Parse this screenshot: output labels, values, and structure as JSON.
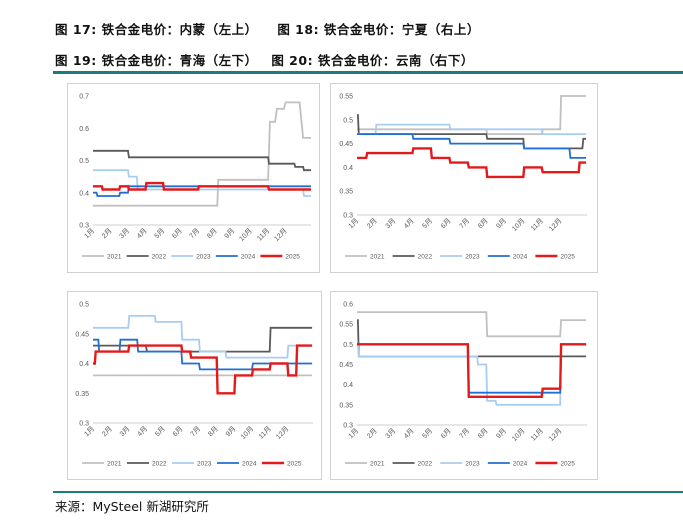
{
  "header": {
    "line1_a": "图 17: 铁合金电价：内蒙（左上）",
    "line1_b": "图 18: 铁合金电价：宁夏（右上）",
    "line2_a": "图 19: 铁合金电价：青海（左下）",
    "line2_b": "图 20: 铁合金电价：云南（右下）"
  },
  "footer": {
    "source": "来源：MySteel 新湖研究所"
  },
  "colors": {
    "2021": "#c0c0c0",
    "2022": "#595959",
    "2023": "#a9cdf0",
    "2024": "#1f6fd4",
    "2025": "#e31a1c",
    "rule": "#1f7a80"
  },
  "chart_data": [
    {
      "type": "line",
      "months": [
        "1月",
        "2月",
        "3月",
        "4月",
        "5月",
        "6月",
        "7月",
        "8月",
        "9月",
        "10月",
        "11月",
        "12月"
      ],
      "ylim": [
        0.3,
        0.7
      ],
      "yticks": [
        "0.3",
        "0.4",
        "0.5",
        "0.6",
        "0.7"
      ],
      "ytick_values": [
        0.3,
        0.4,
        0.5,
        0.6,
        0.7
      ],
      "series": [
        {
          "name": "2021",
          "x": [
            0,
            0.1,
            7.1,
            7.15,
            9.0,
            10.0,
            10.1,
            10.4,
            10.5,
            10.9,
            11.0,
            11.8,
            12.0,
            12.45
          ],
          "y": [
            0.36,
            0.36,
            0.36,
            0.44,
            0.44,
            0.44,
            0.62,
            0.62,
            0.66,
            0.66,
            0.68,
            0.68,
            0.57,
            0.57
          ]
        },
        {
          "name": "2022",
          "x": [
            0,
            2.0,
            2.05,
            10.0,
            10.05,
            11.5,
            11.55,
            12.0,
            12.05,
            12.45
          ],
          "y": [
            0.53,
            0.53,
            0.51,
            0.51,
            0.49,
            0.49,
            0.48,
            0.48,
            0.47,
            0.47
          ]
        },
        {
          "name": "2023",
          "x": [
            0,
            2.0,
            2.05,
            2.5,
            2.55,
            12.0,
            12.05,
            12.45
          ],
          "y": [
            0.47,
            0.47,
            0.45,
            0.45,
            0.41,
            0.41,
            0.39,
            0.39
          ]
        },
        {
          "name": "2024",
          "x": [
            0,
            0.2,
            0.25,
            1.5,
            1.55,
            2.0,
            2.05,
            12.0,
            12.05,
            12.45
          ],
          "y": [
            0.4,
            0.4,
            0.39,
            0.39,
            0.4,
            0.4,
            0.42,
            0.42,
            0.42,
            0.42
          ]
        },
        {
          "name": "2025",
          "x": [
            0,
            0.5,
            0.55,
            1.5,
            1.55,
            2.0,
            2.05,
            3.0,
            3.05,
            4.0,
            4.05,
            6.0,
            6.05,
            8.0,
            8.05,
            10.0,
            10.05,
            11.0,
            11.05,
            12.45
          ],
          "y": [
            0.42,
            0.42,
            0.41,
            0.41,
            0.42,
            0.42,
            0.41,
            0.41,
            0.43,
            0.43,
            0.41,
            0.41,
            0.42,
            0.42,
            0.42,
            0.42,
            0.41,
            0.41,
            0.41,
            0.41
          ]
        }
      ]
    },
    {
      "type": "line",
      "months": [
        "1月",
        "2月",
        "3月",
        "4月",
        "5月",
        "6月",
        "7月",
        "8月",
        "9月",
        "10月",
        "11月",
        "12月"
      ],
      "ylim": [
        0.3,
        0.55
      ],
      "yticks": [
        "0.3",
        "0.35",
        "0.4",
        "0.45",
        "0.5",
        "0.55"
      ],
      "ytick_values": [
        0.3,
        0.35,
        0.4,
        0.45,
        0.5,
        0.55
      ],
      "series": [
        {
          "name": "2021",
          "x": [
            0,
            7.0,
            7.05,
            10.0,
            10.05,
            11.0,
            11.05,
            12.4
          ],
          "y": [
            0.48,
            0.48,
            0.47,
            0.47,
            0.48,
            0.48,
            0.55,
            0.55
          ]
        },
        {
          "name": "2022",
          "x": [
            0,
            0.05,
            0.1,
            7.0,
            7.05,
            9.0,
            9.05,
            12.0,
            12.05,
            12.2,
            12.25,
            12.4
          ],
          "y": [
            0.51,
            0.51,
            0.47,
            0.47,
            0.46,
            0.46,
            0.44,
            0.44,
            0.44,
            0.44,
            0.46,
            0.46
          ]
        },
        {
          "name": "2023",
          "x": [
            0,
            1.0,
            1.05,
            5.0,
            5.05,
            10.0,
            10.05,
            12.0,
            12.05,
            12.4
          ],
          "y": [
            0.47,
            0.47,
            0.49,
            0.49,
            0.48,
            0.48,
            0.47,
            0.47,
            0.47,
            0.47
          ]
        },
        {
          "name": "2024",
          "x": [
            0,
            3.0,
            3.05,
            5.0,
            5.05,
            9.0,
            9.05,
            10.0,
            10.05,
            11.5,
            11.55,
            12.4
          ],
          "y": [
            0.47,
            0.47,
            0.46,
            0.46,
            0.45,
            0.45,
            0.44,
            0.44,
            0.44,
            0.44,
            0.42,
            0.42
          ]
        },
        {
          "name": "2025",
          "x": [
            0,
            0.5,
            0.55,
            2.5,
            2.55,
            3.0,
            3.05,
            4.0,
            4.05,
            5.0,
            5.05,
            6.0,
            6.05,
            7.0,
            7.05,
            9.0,
            9.05,
            10.0,
            10.05,
            11.0,
            11.05,
            12.0,
            12.05,
            12.4
          ],
          "y": [
            0.42,
            0.42,
            0.43,
            0.43,
            0.43,
            0.43,
            0.44,
            0.44,
            0.42,
            0.42,
            0.41,
            0.41,
            0.4,
            0.4,
            0.38,
            0.38,
            0.4,
            0.4,
            0.39,
            0.39,
            0.39,
            0.39,
            0.41,
            0.41
          ]
        }
      ]
    },
    {
      "type": "line",
      "months": [
        "1月",
        "2月",
        "3月",
        "4月",
        "5月",
        "6月",
        "7月",
        "8月",
        "9月",
        "10月",
        "11月",
        "12月"
      ],
      "ylim": [
        0.3,
        0.5
      ],
      "yticks": [
        "0.3",
        "0.35",
        "0.4",
        "0.45",
        "0.5"
      ],
      "ytick_values": [
        0.3,
        0.35,
        0.4,
        0.45,
        0.5
      ],
      "series": [
        {
          "name": "2021",
          "x": [
            0,
            12.4
          ],
          "y": [
            0.38,
            0.38
          ]
        },
        {
          "name": "2022",
          "x": [
            0,
            3.0,
            3.05,
            5.5,
            5.55,
            10.0,
            10.05,
            12.4
          ],
          "y": [
            0.43,
            0.43,
            0.42,
            0.42,
            0.42,
            0.42,
            0.46,
            0.46
          ]
        },
        {
          "name": "2023",
          "x": [
            0,
            1.0,
            1.05,
            2.0,
            2.05,
            3.5,
            3.55,
            5.0,
            5.05,
            6.0,
            6.05,
            7.5,
            7.55,
            11.0,
            11.05,
            12.4
          ],
          "y": [
            0.46,
            0.46,
            0.46,
            0.46,
            0.48,
            0.48,
            0.47,
            0.47,
            0.44,
            0.44,
            0.42,
            0.42,
            0.41,
            0.41,
            0.43,
            0.43
          ]
        },
        {
          "name": "2024",
          "x": [
            0,
            0.3,
            0.35,
            1.5,
            1.55,
            2.5,
            2.55,
            5.0,
            5.05,
            6.0,
            6.05,
            9.0,
            9.05,
            12.4
          ],
          "y": [
            0.44,
            0.44,
            0.42,
            0.42,
            0.44,
            0.44,
            0.42,
            0.42,
            0.4,
            0.4,
            0.39,
            0.39,
            0.4,
            0.4
          ]
        },
        {
          "name": "2025",
          "x": [
            0,
            0.1,
            0.15,
            2.0,
            2.05,
            5.0,
            5.05,
            5.5,
            5.55,
            7.0,
            7.05,
            8.0,
            8.05,
            9.0,
            9.05,
            10.0,
            10.05,
            11.0,
            11.05,
            11.5,
            11.55,
            12.4
          ],
          "y": [
            0.4,
            0.4,
            0.42,
            0.42,
            0.43,
            0.43,
            0.42,
            0.42,
            0.41,
            0.41,
            0.35,
            0.35,
            0.38,
            0.38,
            0.39,
            0.39,
            0.4,
            0.4,
            0.38,
            0.38,
            0.43,
            0.43
          ]
        }
      ]
    },
    {
      "type": "line",
      "months": [
        "1月",
        "2月",
        "3月",
        "4月",
        "5月",
        "6月",
        "7月",
        "8月",
        "9月",
        "10月",
        "11月",
        "12月"
      ],
      "ylim": [
        0.3,
        0.6
      ],
      "yticks": [
        "0.3",
        "0.35",
        "0.4",
        "0.45",
        "0.5",
        "0.55",
        "0.6"
      ],
      "ytick_values": [
        0.3,
        0.35,
        0.4,
        0.45,
        0.5,
        0.55,
        0.6
      ],
      "series": [
        {
          "name": "2021",
          "x": [
            0,
            7.0,
            7.05,
            11.0,
            11.05,
            12.4
          ],
          "y": [
            0.58,
            0.58,
            0.52,
            0.52,
            0.56,
            0.56
          ]
        },
        {
          "name": "2022",
          "x": [
            0,
            0.05,
            0.1,
            12.4
          ],
          "y": [
            0.56,
            0.56,
            0.47,
            0.47
          ]
        },
        {
          "name": "2023",
          "x": [
            0,
            0.05,
            0.1,
            6.5,
            6.55,
            7.0,
            7.05,
            7.5,
            7.55,
            11.0,
            11.05,
            12.4
          ],
          "y": [
            0.5,
            0.5,
            0.47,
            0.47,
            0.45,
            0.45,
            0.36,
            0.36,
            0.35,
            0.35,
            0.5,
            0.5
          ]
        },
        {
          "name": "2024",
          "x": [
            0,
            6.0,
            6.05,
            10.5,
            10.55,
            11.0,
            11.05,
            12.4
          ],
          "y": [
            0.5,
            0.5,
            0.38,
            0.38,
            0.38,
            0.38,
            0.5,
            0.5
          ]
        },
        {
          "name": "2025",
          "x": [
            0,
            6.0,
            6.05,
            7.0,
            7.05,
            10.0,
            10.05,
            11.0,
            11.05,
            12.4
          ],
          "y": [
            0.5,
            0.5,
            0.37,
            0.37,
            0.37,
            0.37,
            0.39,
            0.39,
            0.5,
            0.5
          ]
        }
      ]
    }
  ]
}
